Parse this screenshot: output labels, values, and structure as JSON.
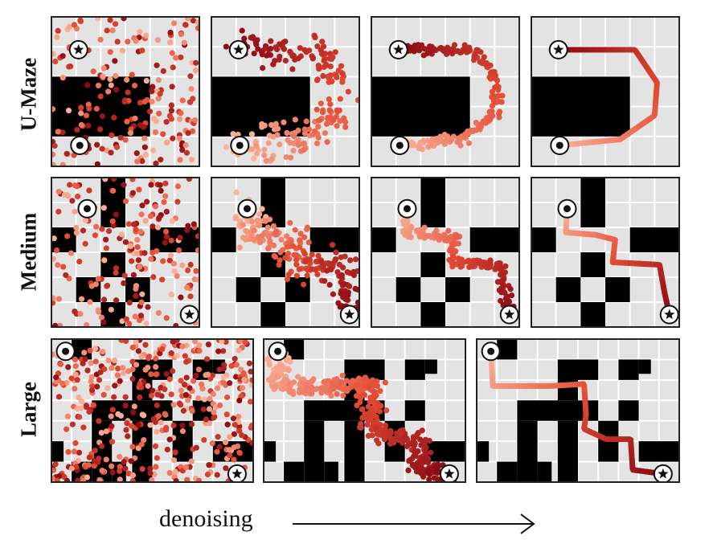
{
  "rows": [
    {
      "label": "U-Maze",
      "maze": "umaze"
    },
    {
      "label": "Medium",
      "maze": "medium"
    },
    {
      "label": "Large",
      "maze": "large"
    }
  ],
  "caption": "denoising",
  "icons": {
    "start": "circle-dot-icon",
    "goal": "star-icon"
  },
  "colors": {
    "wall": "#000000",
    "floor": "#e3e3e3",
    "grid": "#ffffff",
    "traj_light": "#fbb49a",
    "traj_dark": "#8b0a14"
  }
}
